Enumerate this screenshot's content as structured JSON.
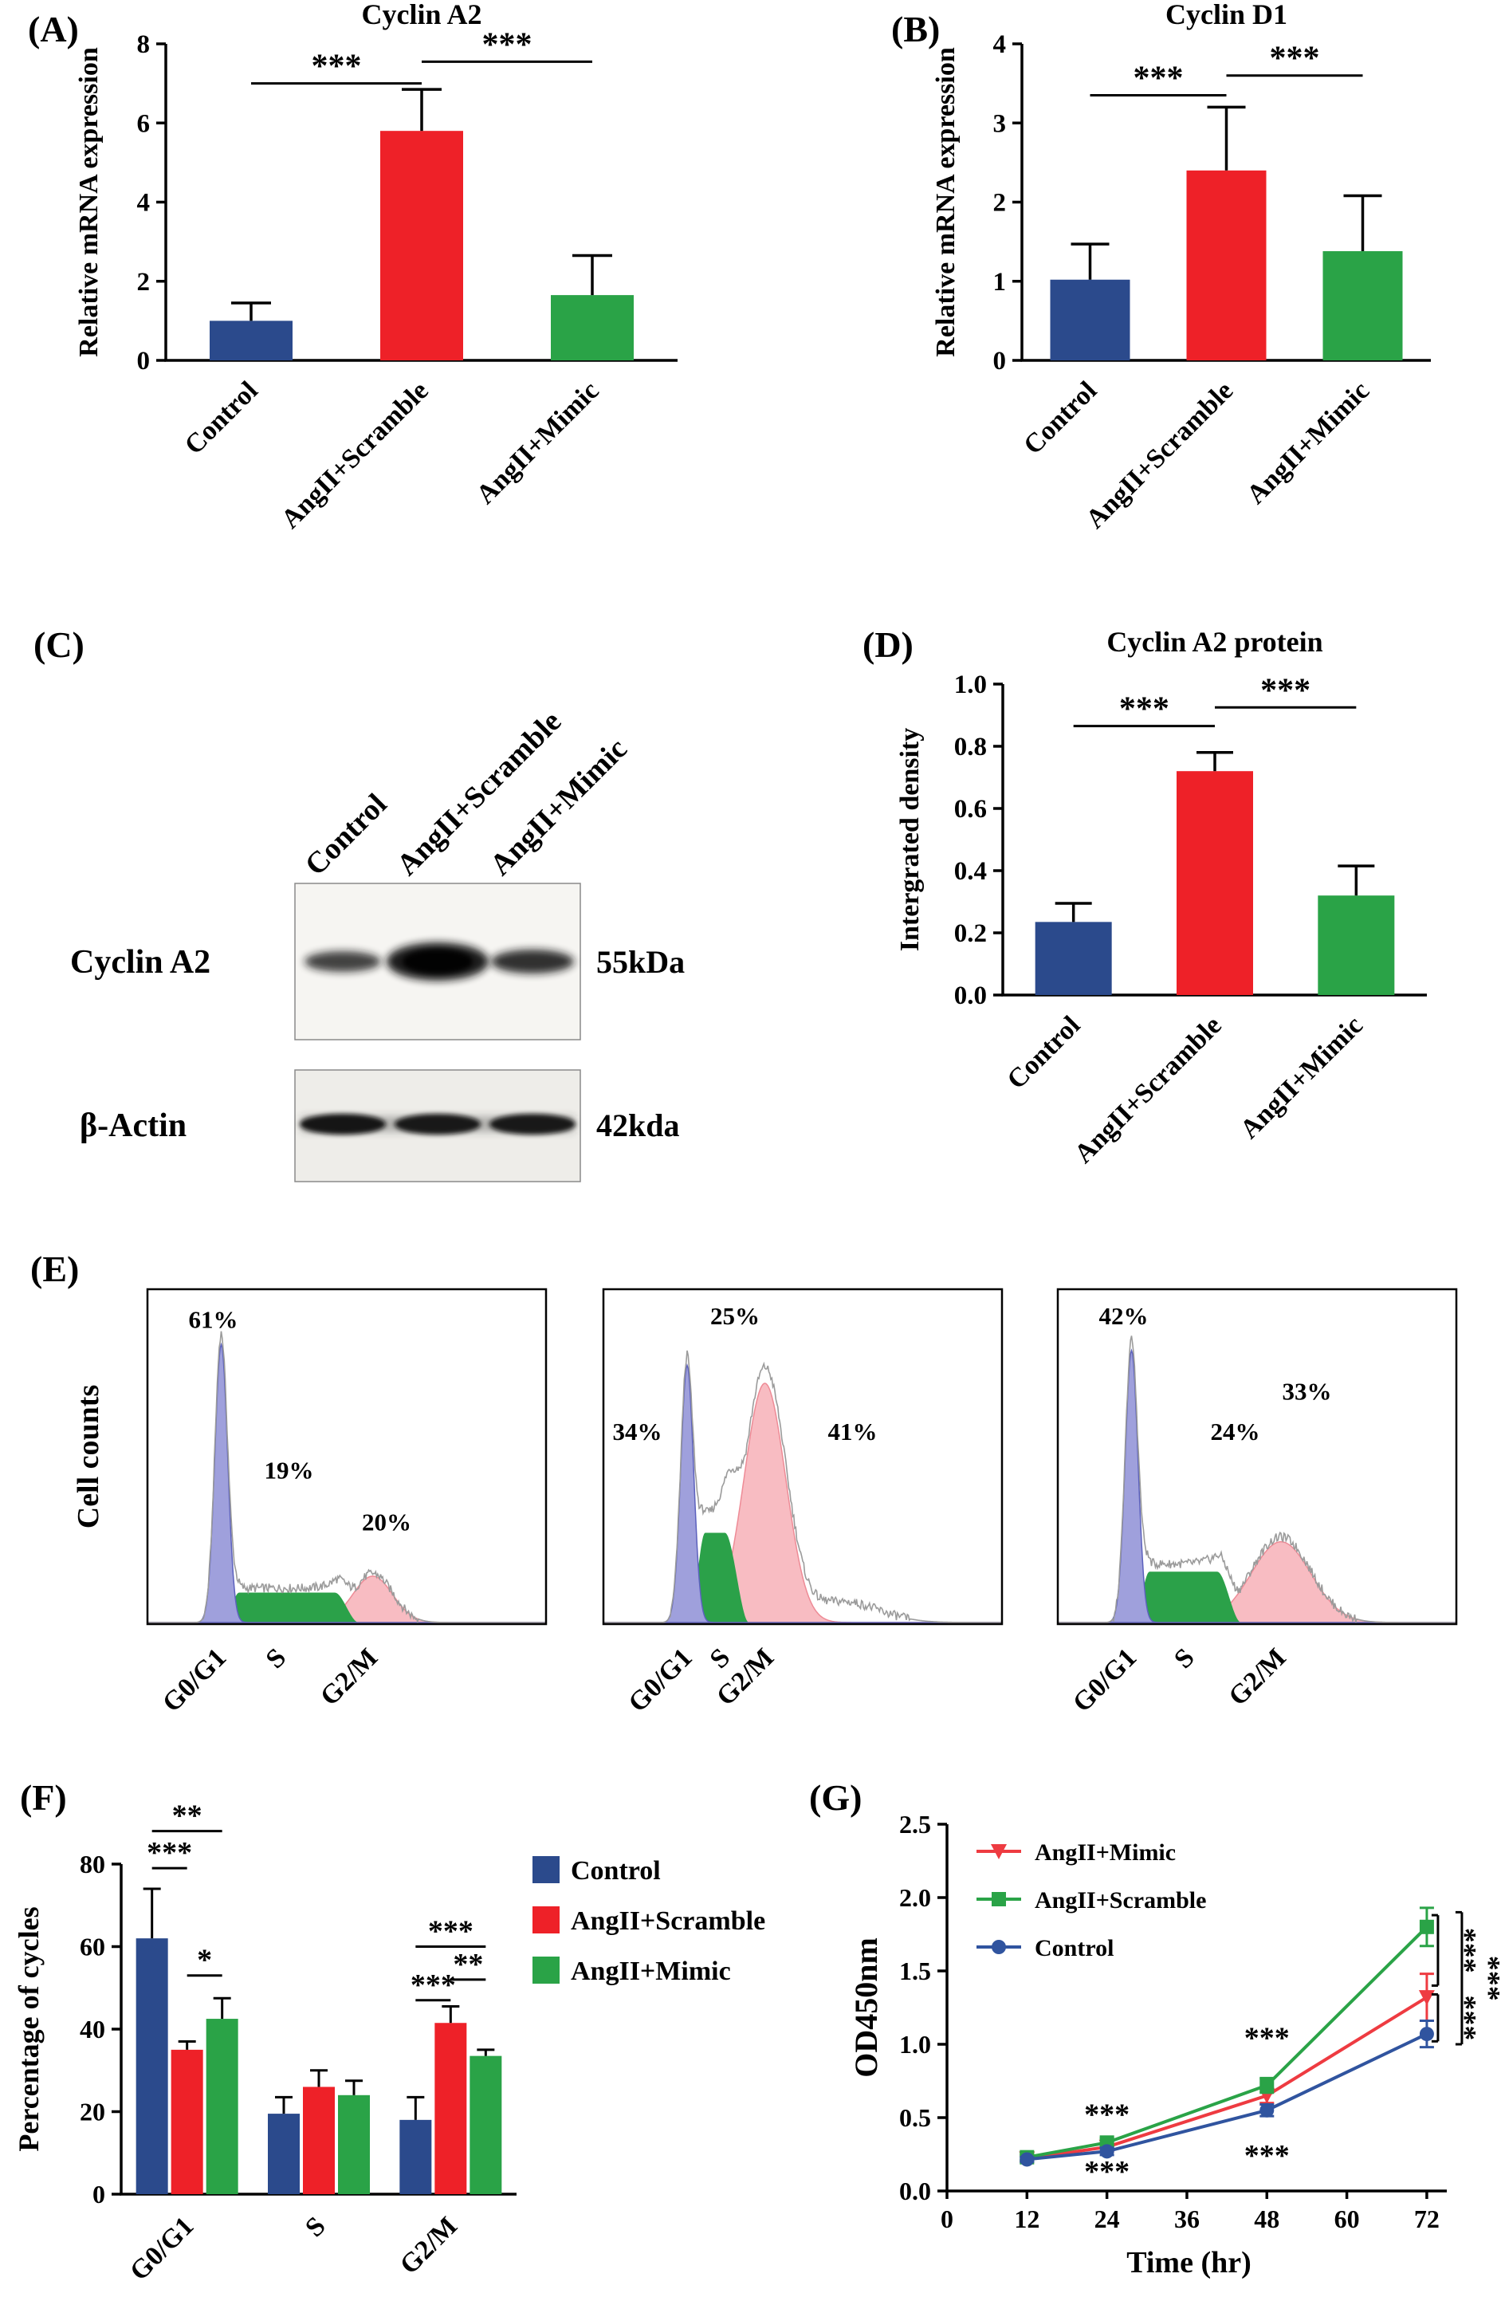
{
  "figure": {
    "background": "#ffffff",
    "palette": {
      "control_blue": "#2b4a8c",
      "scramble_red": "#ee2128",
      "mimic_green": "#2aa347",
      "flow_g1_fill": "#9fa0dc",
      "flow_g1_stroke": "#5c61bd",
      "flow_s_fill": "#2ba149",
      "flow_g2_fill": "#f8bcc2",
      "flow_g2_stroke": "#ee8b96",
      "flow_envelope": "#9b9b9b"
    }
  },
  "panel_labels": {
    "a": "(A)",
    "b": "(B)",
    "c": "(C)",
    "d": "(D)",
    "e": "(E)",
    "f": "(F)",
    "g": "(G)"
  },
  "western_blot": {
    "lane_labels": [
      "Control",
      "AngII+Scramble",
      "AngII+Mimic"
    ],
    "rows": [
      {
        "protein": "Cyclin A2",
        "weight_label": "55kDa",
        "bands": [
          {
            "rx": 48,
            "ry": 13,
            "o": 0.8
          },
          {
            "rx": 64,
            "ry": 24,
            "o": 0.97
          },
          {
            "rx": 52,
            "ry": 15,
            "o": 0.88
          }
        ]
      },
      {
        "protein": "β-Actin",
        "weight_label": "42kda",
        "bands": [
          {
            "rx": 54,
            "ry": 13,
            "o": 0.95
          },
          {
            "rx": 54,
            "ry": 13,
            "o": 0.93
          },
          {
            "rx": 54,
            "ry": 13,
            "o": 0.93
          }
        ]
      }
    ]
  },
  "chart_data": [
    {
      "id": "A",
      "type": "bar",
      "title": "Cyclin A2",
      "ylabel": "Relative mRNA expression",
      "categories": [
        "Control",
        "AngII+Scramble",
        "AngII+Mimic"
      ],
      "values": [
        1.0,
        5.8,
        1.65
      ],
      "errors": [
        0.45,
        1.05,
        1.0
      ],
      "colors": [
        "#2b4a8c",
        "#ee2128",
        "#2aa347"
      ],
      "ylim": [
        0,
        8
      ],
      "yticks": [
        0,
        2,
        4,
        6,
        8
      ],
      "ytick_labels": [
        "0",
        "2",
        "4",
        "6",
        "8"
      ],
      "significance": [
        {
          "i": 0,
          "j": 1,
          "y": 7.0,
          "label": "***"
        },
        {
          "i": 1,
          "j": 2,
          "y": 7.55,
          "label": "***"
        }
      ]
    },
    {
      "id": "B",
      "type": "bar",
      "title": "Cyclin D1",
      "ylabel": "Relative mRNA expression",
      "categories": [
        "Control",
        "AngII+Scramble",
        "AngII+Mimic"
      ],
      "values": [
        1.02,
        2.4,
        1.38
      ],
      "errors": [
        0.45,
        0.8,
        0.7
      ],
      "colors": [
        "#2b4a8c",
        "#ee2128",
        "#2aa347"
      ],
      "ylim": [
        0,
        4
      ],
      "yticks": [
        0,
        1,
        2,
        3,
        4
      ],
      "ytick_labels": [
        "0",
        "1",
        "2",
        "3",
        "4"
      ],
      "significance": [
        {
          "i": 0,
          "j": 1,
          "y": 3.35,
          "label": "***"
        },
        {
          "i": 1,
          "j": 2,
          "y": 3.6,
          "label": "***"
        }
      ]
    },
    {
      "id": "D",
      "type": "bar",
      "title": "Cyclin A2 protein",
      "ylabel": "Intergrated density",
      "categories": [
        "Control",
        "AngII+Scramble",
        "AngII+Mimic"
      ],
      "values": [
        0.235,
        0.72,
        0.32
      ],
      "errors": [
        0.06,
        0.06,
        0.095
      ],
      "colors": [
        "#2b4a8c",
        "#ee2128",
        "#2aa347"
      ],
      "ylim": [
        0,
        1.0
      ],
      "yticks": [
        0,
        0.2,
        0.4,
        0.6,
        0.8,
        1.0
      ],
      "ytick_labels": [
        "0.0",
        "0.2",
        "0.4",
        "0.6",
        "0.8",
        "1.0"
      ],
      "significance": [
        {
          "i": 0,
          "j": 1,
          "y": 0.865,
          "label": "***"
        },
        {
          "i": 1,
          "j": 2,
          "y": 0.925,
          "label": "***"
        }
      ]
    },
    {
      "id": "E1",
      "type": "flow-histogram",
      "seed": 1,
      "ylabel": "Cell counts",
      "phases": [
        {
          "name": "G0/G1",
          "percent": 61
        },
        {
          "name": "S",
          "percent": 19
        },
        {
          "name": "G2/M",
          "percent": 20
        }
      ],
      "annotations": [
        {
          "text": "61%",
          "x": 0.165,
          "y": 0.115
        },
        {
          "text": "19%",
          "x": 0.355,
          "y": 0.565
        },
        {
          "text": "20%",
          "x": 0.6,
          "y": 0.72
        }
      ],
      "xtick_labels": [
        {
          "text": "G0/G1",
          "x": 0.185
        },
        {
          "text": "S",
          "x": 0.335
        },
        {
          "text": "G2/M",
          "x": 0.565
        }
      ],
      "peaks": {
        "g1": {
          "mu": 0.185,
          "sigma": 0.016,
          "h": 0.93
        },
        "s": {
          "from": 0.21,
          "to": 0.5,
          "h": 0.1
        },
        "g2": {
          "mu": 0.565,
          "sigma": 0.05,
          "h": 0.155
        }
      }
    },
    {
      "id": "E2",
      "type": "flow-histogram",
      "seed": 2,
      "ylabel": "",
      "phases": [
        {
          "name": "G0/G1",
          "percent": 34
        },
        {
          "name": "S",
          "percent": 25
        },
        {
          "name": "G2/M",
          "percent": 41
        }
      ],
      "annotations": [
        {
          "text": "25%",
          "x": 0.33,
          "y": 0.105
        },
        {
          "text": "34%",
          "x": 0.085,
          "y": 0.45
        },
        {
          "text": "41%",
          "x": 0.625,
          "y": 0.45
        }
      ],
      "xtick_labels": [
        {
          "text": "G0/G1",
          "x": 0.21
        },
        {
          "text": "S",
          "x": 0.305
        },
        {
          "text": "G2/M",
          "x": 0.415
        }
      ],
      "peaks": {
        "g1": {
          "mu": 0.21,
          "sigma": 0.016,
          "h": 0.86
        },
        "s": {
          "from": 0.235,
          "to": 0.335,
          "h": 0.3
        },
        "g2": {
          "mu": 0.405,
          "sigma": 0.052,
          "h": 0.8
        },
        "extra": {
          "mu": 0.6,
          "sigma": 0.09,
          "h": 0.07
        }
      }
    },
    {
      "id": "E3",
      "type": "flow-histogram",
      "seed": 3,
      "ylabel": "",
      "phases": [
        {
          "name": "G0/G1",
          "percent": 42
        },
        {
          "name": "S",
          "percent": 24
        },
        {
          "name": "G2/M",
          "percent": 33
        }
      ],
      "annotations": [
        {
          "text": "42%",
          "x": 0.165,
          "y": 0.105
        },
        {
          "text": "24%",
          "x": 0.445,
          "y": 0.45
        },
        {
          "text": "33%",
          "x": 0.625,
          "y": 0.33
        }
      ],
      "xtick_labels": [
        {
          "text": "G0/G1",
          "x": 0.185
        },
        {
          "text": "S",
          "x": 0.33
        },
        {
          "text": "G2/M",
          "x": 0.56
        }
      ],
      "peaks": {
        "g1": {
          "mu": 0.185,
          "sigma": 0.016,
          "h": 0.91
        },
        "s": {
          "from": 0.21,
          "to": 0.43,
          "h": 0.17
        },
        "g2": {
          "mu": 0.56,
          "sigma": 0.075,
          "h": 0.27
        }
      }
    },
    {
      "id": "F",
      "type": "bar",
      "grouped": true,
      "ylabel": "Percentage of cycles",
      "categories": [
        "G0/G1",
        "S",
        "G2/M"
      ],
      "series": [
        {
          "name": "Control",
          "color": "#2b4a8c",
          "values": [
            62,
            19.5,
            18
          ],
          "errors": [
            12,
            4,
            5.5
          ]
        },
        {
          "name": "AngII+Scramble",
          "color": "#ee2128",
          "values": [
            35,
            26,
            41.5
          ],
          "errors": [
            2,
            4,
            4
          ]
        },
        {
          "name": "AngII+Mimic",
          "color": "#2aa347",
          "values": [
            42.5,
            24,
            33.5
          ],
          "errors": [
            5,
            3.5,
            1.5
          ]
        }
      ],
      "ylim": [
        0,
        80
      ],
      "yticks": [
        0,
        20,
        40,
        60,
        80
      ],
      "ytick_labels": [
        "0",
        "20",
        "40",
        "60",
        "80"
      ],
      "legend": [
        "Control",
        "AngII+Scramble",
        "AngII+Mimic"
      ],
      "significance": [
        {
          "cat": 0,
          "i": 0,
          "j": 2,
          "y": 88,
          "label": "**"
        },
        {
          "cat": 0,
          "i": 0,
          "j": 1,
          "y": 79,
          "label": "***"
        },
        {
          "cat": 0,
          "i": 1,
          "j": 2,
          "y": 53,
          "label": "*"
        },
        {
          "cat": 2,
          "i": 0,
          "j": 2,
          "y": 60,
          "label": "***"
        },
        {
          "cat": 2,
          "i": 1,
          "j": 2,
          "y": 52,
          "label": "**"
        },
        {
          "cat": 2,
          "i": 0,
          "j": 1,
          "y": 47,
          "label": "***"
        }
      ]
    },
    {
      "id": "G",
      "type": "line",
      "ylabel": "OD450nm",
      "xlabel": "Time (hr)",
      "x": [
        12,
        24,
        48,
        72
      ],
      "xlim": [
        0,
        75
      ],
      "xticks": [
        0,
        12,
        24,
        36,
        48,
        60,
        72
      ],
      "xtick_labels": [
        "0",
        "12",
        "24",
        "36",
        "48",
        "60",
        "72"
      ],
      "ylim": [
        0,
        2.5
      ],
      "yticks": [
        0,
        0.5,
        1.0,
        1.5,
        2.0,
        2.5
      ],
      "ytick_labels": [
        "0.0",
        "0.5",
        "1.0",
        "1.5",
        "2.0",
        "2.5"
      ],
      "series": [
        {
          "name": "AngII+Mimic",
          "color": "#ee3b41",
          "marker": "triangle-down",
          "values": [
            0.22,
            0.3,
            0.65,
            1.32
          ],
          "errors": [
            0.02,
            0.03,
            0.05,
            0.16
          ]
        },
        {
          "name": "AngII+Scramble",
          "color": "#2aa347",
          "marker": "square",
          "values": [
            0.23,
            0.33,
            0.72,
            1.8
          ],
          "errors": [
            0.02,
            0.03,
            0.05,
            0.13
          ]
        },
        {
          "name": "Control",
          "color": "#30549f",
          "marker": "circle",
          "values": [
            0.215,
            0.27,
            0.55,
            1.07
          ],
          "errors": [
            0.015,
            0.025,
            0.04,
            0.09
          ]
        }
      ],
      "annotations": [
        {
          "text": "***",
          "x": 24,
          "y": 0.52
        },
        {
          "text": "***",
          "x": 24,
          "y": 0.13
        },
        {
          "text": "***",
          "x": 48,
          "y": 1.04
        },
        {
          "text": "***",
          "x": 48,
          "y": 0.24
        }
      ],
      "right_brackets": [
        {
          "label": "***",
          "from": 1.88,
          "to": 1.4,
          "x_offset": 14
        },
        {
          "label": "***",
          "from": 1.34,
          "to": 1.02,
          "x_offset": 14
        },
        {
          "label": "***",
          "from": 1.9,
          "to": 1.0,
          "x_offset": 44
        }
      ]
    }
  ]
}
